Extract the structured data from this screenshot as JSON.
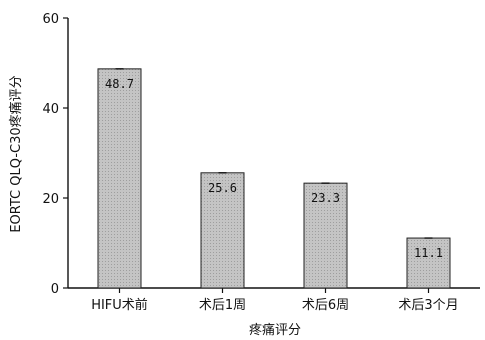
{
  "chart_data": {
    "type": "bar",
    "categories": [
      "HIFU术前",
      "术后1周",
      "术后6周",
      "术后3个月"
    ],
    "values": [
      48.7,
      25.6,
      23.3,
      11.1
    ],
    "data_labels": [
      "48.7",
      "25.6",
      "23.3",
      "11.1"
    ],
    "title": "",
    "xlabel": "疼痛评分",
    "ylabel": "EORTC QLQ-C30疼痛评分",
    "ylim": [
      0,
      60
    ],
    "yticks": [
      0,
      20,
      40,
      60
    ],
    "grid": false,
    "legend": "none",
    "bar_color": "#bdbdbd",
    "bar_edge_color": "#222222"
  }
}
